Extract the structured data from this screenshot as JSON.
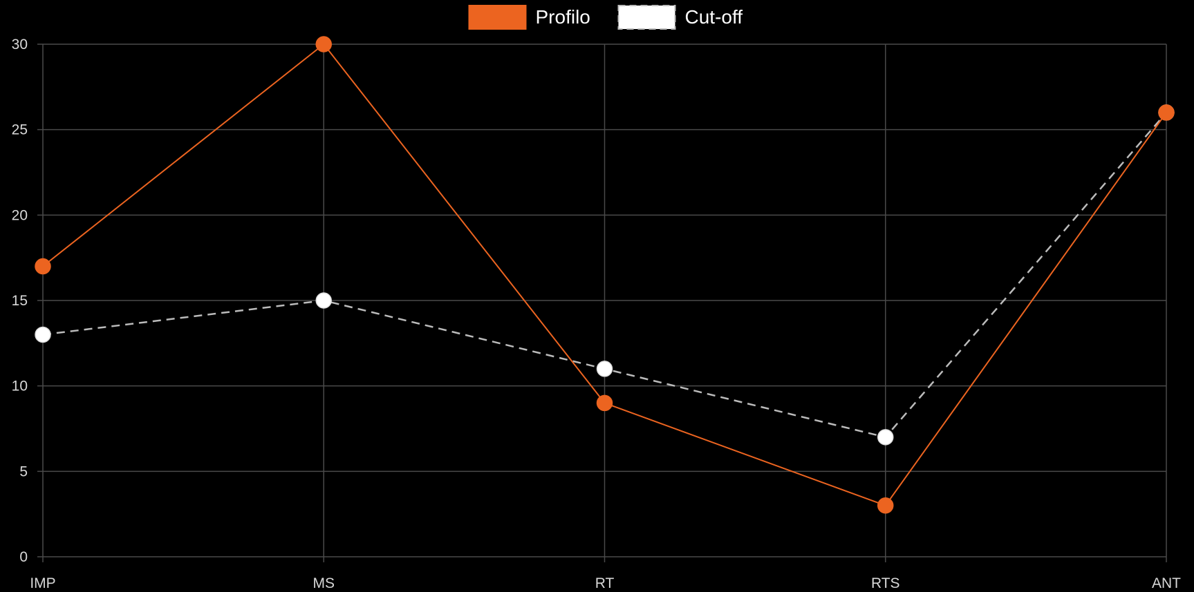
{
  "chart_data": {
    "type": "line",
    "title": "",
    "xlabel": "",
    "ylabel": "",
    "categories": [
      "IMP",
      "MS",
      "RT",
      "RTS",
      "ANT"
    ],
    "ylim": [
      0,
      30
    ],
    "yticks": [
      0,
      5,
      10,
      15,
      20,
      25,
      30
    ],
    "grid": true,
    "legend_position": "top-center",
    "series": [
      {
        "name": "Profilo",
        "values": [
          17,
          30,
          9,
          3,
          26
        ],
        "color": "#ec6420",
        "line_style": "solid",
        "marker_color": "#ec6420"
      },
      {
        "name": "Cut-off",
        "values": [
          13,
          15,
          11,
          7,
          26
        ],
        "color": "#bbbbbb",
        "line_style": "dashed",
        "marker_color": "#ffffff"
      }
    ]
  }
}
